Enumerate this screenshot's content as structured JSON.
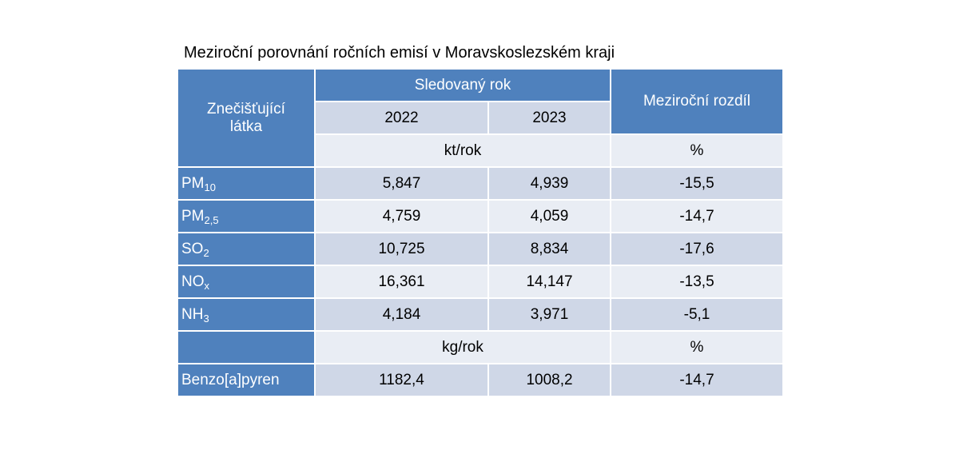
{
  "title": "Meziroční porovnání ročních emisí v Moravskoslezském kraji",
  "header": {
    "substance": "Znečišťující látka",
    "tracked_year": "Sledovaný rok",
    "years": [
      "2022",
      "2023"
    ],
    "change": "Meziroční rozdíl"
  },
  "sections": [
    {
      "units": "kt/rok",
      "change_unit": "%",
      "rows": [
        {
          "name": "PM",
          "sub": "10",
          "values": [
            "5,847",
            "4,939",
            "-15,5"
          ]
        },
        {
          "name": "PM",
          "sub": "2,5",
          "values": [
            "4,759",
            "4,059",
            "-14,7"
          ]
        },
        {
          "name": "SO",
          "sub": "2",
          "values": [
            "10,725",
            "8,834",
            "-17,6"
          ]
        },
        {
          "name": "NO",
          "sub": "x",
          "values": [
            "16,361",
            "14,147",
            "-13,5"
          ]
        },
        {
          "name": "NH",
          "sub": "3",
          "values": [
            "4,184",
            "3,971",
            "-5,1"
          ]
        }
      ]
    },
    {
      "units": "kg/rok",
      "change_unit": "%",
      "rows": [
        {
          "name": "Benzo[a]pyren",
          "values": [
            "1182,4",
            "1008,2",
            "-14,7"
          ]
        }
      ]
    }
  ]
}
